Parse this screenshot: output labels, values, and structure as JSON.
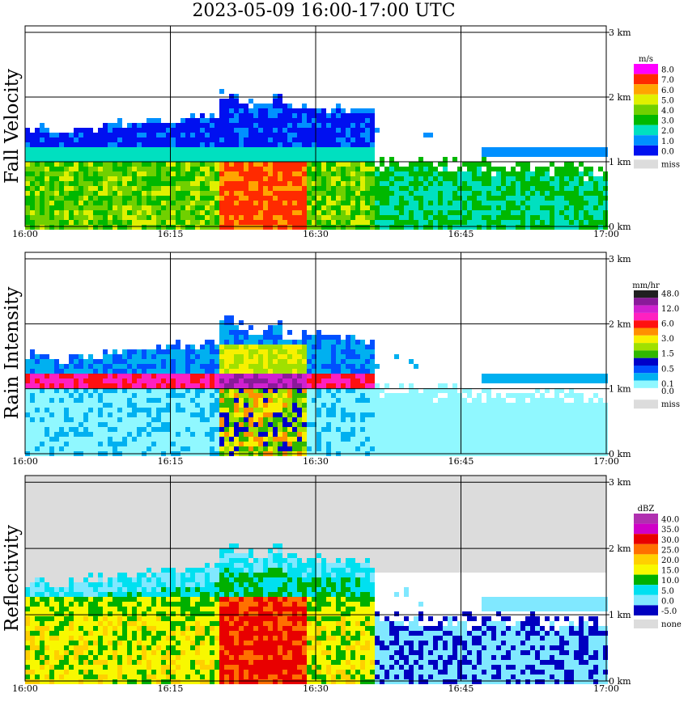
{
  "title": "2023-05-09  16:00-17:00 UTC",
  "chart_data": [
    {
      "type": "heatmap",
      "ylabel": "Fall Velocity",
      "xticks": [
        "16:00",
        "16:15",
        "16:30",
        "16:45",
        "17:00"
      ],
      "yticks": [
        "0 km",
        "1 km",
        "2 km",
        "3 km"
      ],
      "ylim": [
        0,
        3
      ],
      "legend_unit": "m/s",
      "legend": [
        {
          "label": "8.0",
          "color": "#ff00ff"
        },
        {
          "label": "7.0",
          "color": "#ff2a00"
        },
        {
          "label": "6.0",
          "color": "#ffa500"
        },
        {
          "label": "5.0",
          "color": "#e0f000"
        },
        {
          "label": "4.0",
          "color": "#70d000"
        },
        {
          "label": "3.0",
          "color": "#00b800"
        },
        {
          "label": "2.0",
          "color": "#00e0c0"
        },
        {
          "label": "1.0",
          "color": "#0090ff"
        },
        {
          "label": "0.0",
          "color": "#0010f0"
        },
        {
          "label": "miss",
          "color": "#dcdcdc"
        }
      ]
    },
    {
      "type": "heatmap",
      "ylabel": "Rain Intensity",
      "xticks": [
        "16:00",
        "16:15",
        "16:30",
        "16:45",
        "17:00"
      ],
      "yticks": [
        "0 km",
        "1 km",
        "2 km",
        "3 km"
      ],
      "ylim": [
        0,
        3
      ],
      "legend_unit": "mm/hr",
      "legend": [
        {
          "label": "48.0",
          "color": "#202020"
        },
        {
          "label": "",
          "color": "#8a1a9a"
        },
        {
          "label": "12.0",
          "color": "#d020d0"
        },
        {
          "label": "",
          "color": "#ff20c0"
        },
        {
          "label": "6.0",
          "color": "#ff1010"
        },
        {
          "label": "",
          "color": "#ff9000"
        },
        {
          "label": "3.0",
          "color": "#f8f000"
        },
        {
          "label": "",
          "color": "#a0e000"
        },
        {
          "label": "1.5",
          "color": "#30b800"
        },
        {
          "label": "",
          "color": "#0000c8"
        },
        {
          "label": "0.5",
          "color": "#0050ff"
        },
        {
          "label": "",
          "color": "#00b0f0"
        },
        {
          "label": "0.1",
          "color": "#90f8ff"
        },
        {
          "label": "0.0",
          "color": "#ffffff"
        },
        {
          "label": "miss",
          "color": "#dcdcdc"
        }
      ]
    },
    {
      "type": "heatmap",
      "ylabel": "Reflectivity",
      "xticks": [
        "16:00",
        "16:15",
        "16:30",
        "16:45",
        "17:00"
      ],
      "yticks": [
        "0 km",
        "1 km",
        "2 km",
        "3 km"
      ],
      "ylim": [
        0,
        3
      ],
      "legend_unit": "dBZ",
      "legend": [
        {
          "label": "40.0",
          "color": "#b030b0"
        },
        {
          "label": "35.0",
          "color": "#d000c8"
        },
        {
          "label": "30.0",
          "color": "#e80000"
        },
        {
          "label": "25.0",
          "color": "#ff7000"
        },
        {
          "label": "20.0",
          "color": "#ffd000"
        },
        {
          "label": "15.0",
          "color": "#f8f800"
        },
        {
          "label": "10.0",
          "color": "#00b000"
        },
        {
          "label": "5.0",
          "color": "#00e0f0"
        },
        {
          "label": "0.0",
          "color": "#80e8ff"
        },
        {
          "label": "-5.0",
          "color": "#0000c0"
        },
        {
          "label": "none",
          "color": "#dcdcdc"
        }
      ]
    }
  ]
}
